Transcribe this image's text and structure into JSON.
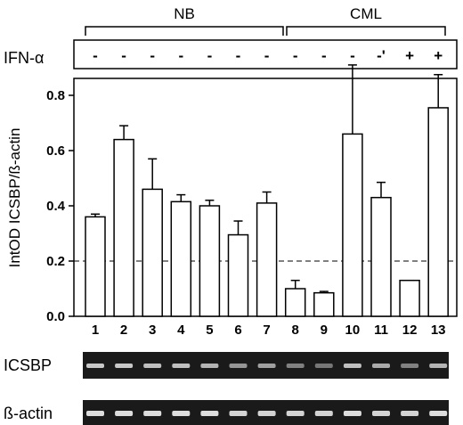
{
  "chart_data": {
    "type": "bar",
    "ylabel": "IntOD ICSBP/ß-actin",
    "ylim": [
      0,
      0.95
    ],
    "yticks": [
      "0.0",
      "0.2",
      "0.4",
      "0.6",
      "0.8"
    ],
    "reference_line": {
      "value": 0.2,
      "style": "dashed"
    },
    "groups": [
      {
        "label": "NB",
        "from": 0,
        "to": 6
      },
      {
        "label": "CML",
        "from": 7,
        "to": 12
      }
    ],
    "treatment_label": "IFN-α",
    "categories": [
      "1",
      "2",
      "3",
      "4",
      "5",
      "6",
      "7",
      "8",
      "9",
      "10",
      "11",
      "12",
      "13"
    ],
    "treatment": [
      "-",
      "-",
      "-",
      "-",
      "-",
      "-",
      "-",
      "-",
      "-",
      "-",
      "-'",
      "+",
      "+"
    ],
    "values": [
      0.36,
      0.64,
      0.46,
      0.415,
      0.4,
      0.295,
      0.41,
      0.1,
      0.085,
      0.66,
      0.43,
      0.13,
      0.755
    ],
    "errors": [
      0.01,
      0.05,
      0.11,
      0.025,
      0.02,
      0.05,
      0.04,
      0.03,
      0.005,
      0.25,
      0.055,
      0.0,
      0.12
    ]
  },
  "gel": {
    "rows": [
      {
        "label": "ICSBP",
        "intensity": [
          0.85,
          0.85,
          0.8,
          0.8,
          0.75,
          0.6,
          0.65,
          0.5,
          0.45,
          0.8,
          0.7,
          0.5,
          0.75
        ]
      },
      {
        "label": "ß-actin",
        "intensity": [
          0.95,
          0.95,
          0.95,
          0.95,
          0.95,
          0.9,
          0.9,
          0.9,
          0.9,
          0.95,
          0.9,
          0.9,
          0.95
        ]
      }
    ]
  }
}
